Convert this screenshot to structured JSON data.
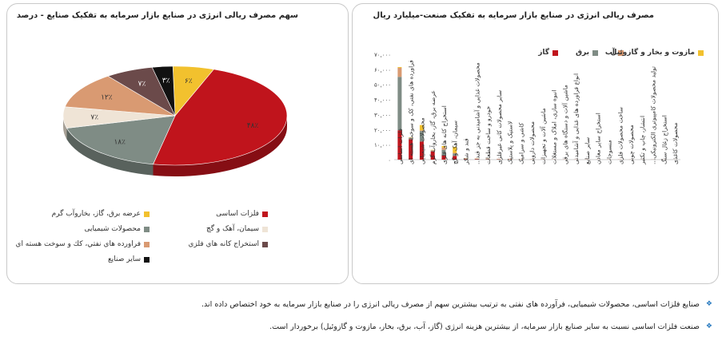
{
  "chart_data": [
    {
      "type": "bar",
      "stacked": true,
      "title": "مصرف ریالی انرژی در صنایع بازار سرمایه به تفکیک صنعت-میلیارد ریال",
      "legend_position": "top",
      "ylim": [
        0,
        70
      ],
      "yticks": [
        "۰",
        "۱۰,۰۰۰",
        "۲۰,۰۰۰",
        "۳۰,۰۰۰",
        "۴۰,۰۰۰",
        "۵۰,۰۰۰",
        "۶۰,۰۰۰",
        "۷۰,۰۰۰"
      ],
      "categories": [
        "فلزات اساسی",
        "فراورده های نفتی، کک و سوخت هسته ای",
        "محصولات شیمیایی",
        "عرضه برق، گاز، بخاروآب گرم",
        "استخراج کانه های فلزی",
        "سیمان، آهک و گچ",
        "قند و شکر",
        "محصولات غذایی و آشامیدنی به جز قند...",
        "خودرو و ساخت قطعات",
        "سایر محصولات کانی غیرفلزی",
        "لاستیک و پلاستیک",
        "کاشی و سرامیک",
        "محصولات دارویی",
        "ماشین آلات و تجهیزات",
        "انبوه سازی، املاک و مستغلات",
        "ماشین آلات و دستگاه های برقی",
        "انواع فراورده های غذایی و آشامیدنی",
        "سایر صنایع",
        "استخراج سایر معادن",
        "منسوجات",
        "ساخت محصولات فلزی",
        "محصولات چوبی",
        "انتشار، چاپ و تکثیر",
        "تولید محصولات کامپیوتری الکترونیکی...",
        "استخراج زغال سنگ",
        "محصولات کاغذی"
      ],
      "series": [
        {
          "name": "گاز",
          "color": "#c0141c",
          "values": [
            19.5,
            13.5,
            12.0,
            5.5,
            3.0,
            2.5,
            0.4,
            0.3,
            0.2,
            0.2,
            0.2,
            0.1,
            0.1,
            0.1,
            0.05,
            0.05,
            0.05,
            0.05,
            0.05,
            0.05,
            0.05,
            0.03,
            0.03,
            0.03,
            0.03,
            0.02
          ]
        },
        {
          "name": "برق",
          "color": "#7f8c85",
          "values": [
            35.5,
            1.0,
            7.0,
            0.5,
            3.5,
            1.5,
            0.4,
            0.3,
            0.3,
            0.2,
            0.2,
            0.1,
            0.1,
            0.1,
            0.05,
            0.05,
            0.05,
            0.05,
            0.05,
            0.05,
            0.05,
            0.03,
            0.03,
            0.03,
            0.03,
            0.02
          ]
        },
        {
          "name": "آب",
          "color": "#d99a72",
          "values": [
            6.0,
            0.2,
            0.5,
            0.3,
            1.5,
            0.5,
            0.1,
            0.1,
            0.1,
            0.05,
            0.05,
            0.05,
            0.02,
            0.02,
            0.02,
            0.02,
            0.02,
            0.02,
            0.02,
            0.02,
            0.02,
            0.01,
            0.01,
            0.01,
            0.01,
            0.01
          ]
        },
        {
          "name": "مازوت و بخار و گازوئیل",
          "color": "#f2c12e",
          "values": [
            0.5,
            0.2,
            3.5,
            0.2,
            1.0,
            4.0,
            0.1,
            0.1,
            0.05,
            0.05,
            0.05,
            0.02,
            0.02,
            0.02,
            0.01,
            0.01,
            0.01,
            0.01,
            0.01,
            0.01,
            0.01,
            0.01,
            0.01,
            0.01,
            0.01,
            0.01
          ]
        }
      ]
    },
    {
      "type": "pie",
      "title": "سهم مصرف ریالی انرژی در صنایع  بازار سرمایه به تفکیک صنایع - درصد",
      "slices": [
        {
          "name": "فلزات اساسی",
          "value": 48,
          "label": "۴۸٪",
          "color": "#c0141c"
        },
        {
          "name": "محصولات شیمیایی",
          "value": 18,
          "label": "۱۸٪",
          "color": "#7f8c85"
        },
        {
          "name": "سیمان، آهک و گچ",
          "value": 7,
          "label": "۷٪",
          "color": "#efe4d6"
        },
        {
          "name": "فراورده هاي نفتي، كك و سوخت هسته اي",
          "value": 12,
          "label": "۱۲٪",
          "color": "#d99a72"
        },
        {
          "name": "استخراج كانه هاي فلزي",
          "value": 7,
          "label": "۷٪",
          "color": "#6b4a4a"
        },
        {
          "name": "سایر صنایع",
          "value": 3,
          "label": "۳٪",
          "color": "#111111"
        },
        {
          "name": "عرضه برق، گاز، بخاروآب گرم",
          "value": 6,
          "label": "۶٪",
          "color": "#f2c12e"
        }
      ],
      "legend_position": "bottom"
    }
  ],
  "notes": [
    "صنایع فلزات اساسی، محصولات شیمیایی، فرآورده های نفتی به ترتیب بیشترین سهم از مصرف ریالی انرژی را در صنایع بازار سرمایه به خود اختصاص داده اند.",
    "صنعت فلزات اساسی نسبت به سایر صنایع بازار سرمایه، از بیشترین هزینه انرژی (گاز، آب، برق، بخار، مازوت و گازوئیل) برخوردار است."
  ],
  "bullet_icon": "diamond-bullet-icon"
}
